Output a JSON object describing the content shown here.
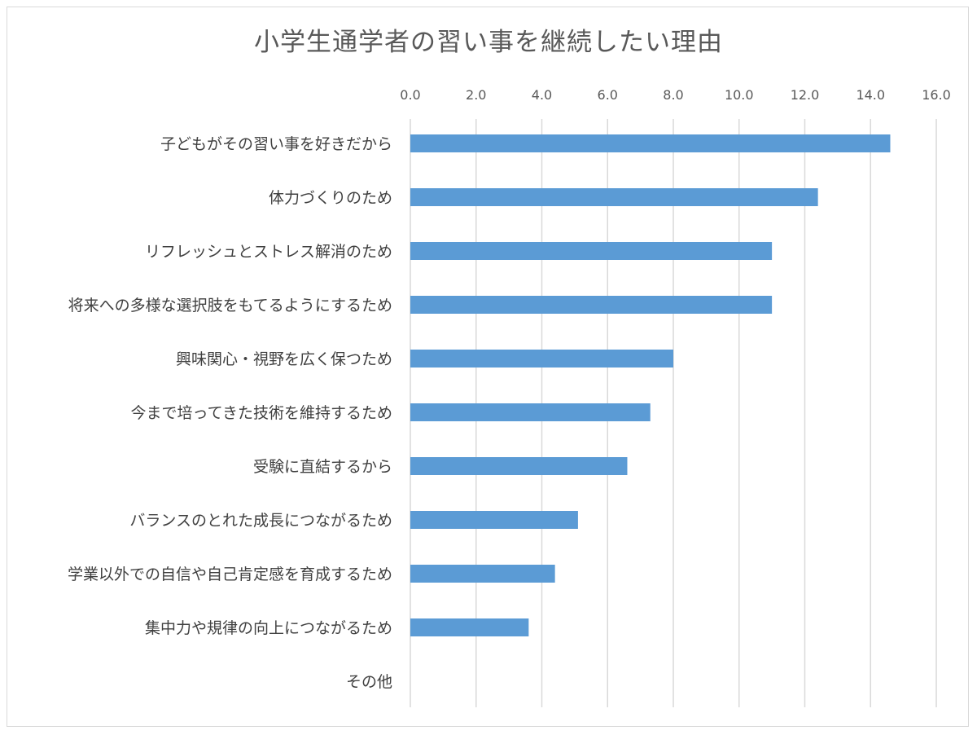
{
  "chart_data": {
    "type": "bar",
    "orientation": "horizontal",
    "title": "小学生通学者の習い事を継続したい理由",
    "xlabel": "",
    "ylabel": "",
    "xlim": [
      0,
      16
    ],
    "x_ticks": [
      "0.0",
      "2.0",
      "4.0",
      "6.0",
      "8.0",
      "10.0",
      "12.0",
      "14.0",
      "16.0"
    ],
    "x_axis_position": "top",
    "grid": true,
    "legend": "none",
    "bar_color": "#5b9bd5",
    "categories": [
      "子どもがその習い事を好きだから",
      "体力づくりのため",
      "リフレッシュとストレス解消のため",
      "将来への多様な選択肢をもてるようにするため",
      "興味関心・視野を広く保つため",
      "今まで培ってきた技術を維持するため",
      "受験に直結するから",
      "バランスのとれた成長につながるため",
      "学業以外での自信や自己肯定感を育成するため",
      "集中力や規律の向上につながるため",
      "その他"
    ],
    "values": [
      14.6,
      12.4,
      11.0,
      11.0,
      8.0,
      7.3,
      6.6,
      5.1,
      4.4,
      3.6,
      0
    ]
  }
}
